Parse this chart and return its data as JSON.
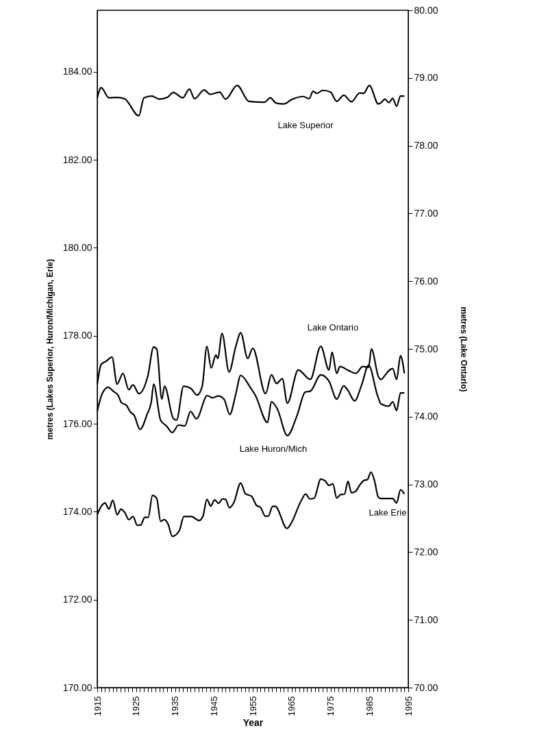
{
  "chart_data": {
    "type": "line",
    "xlabel": "Year",
    "ylabel": "metres (Lakes Superior, Huron/Michigan, Erie)",
    "y2label": "metres (Lake Ontario)",
    "xlim": [
      1915,
      1995
    ],
    "xticks": [
      1915,
      {
        "value": 1916,
        "label": null
      },
      {
        "value": 1917,
        "label": null
      },
      {
        "value": 1918,
        "label": null
      },
      {
        "value": 1919,
        "label": null
      },
      {
        "value": 1920,
        "label": null
      },
      {
        "value": 1921,
        "label": null
      },
      {
        "value": 1922,
        "label": null
      },
      {
        "value": 1923,
        "label": null
      },
      {
        "value": 1924,
        "label": null
      },
      1925,
      {
        "value": 1926,
        "label": null
      },
      {
        "value": 1927,
        "label": null
      },
      {
        "value": 1928,
        "label": null
      },
      {
        "value": 1929,
        "label": null
      },
      {
        "value": 1930,
        "label": null
      },
      {
        "value": 1931,
        "label": null
      },
      {
        "value": 1932,
        "label": null
      },
      {
        "value": 1933,
        "label": null
      },
      {
        "value": 1934,
        "label": null
      },
      1935,
      {
        "value": 1936,
        "label": null
      },
      {
        "value": 1937,
        "label": null
      },
      {
        "value": 1938,
        "label": null
      },
      {
        "value": 1939,
        "label": null
      },
      {
        "value": 1940,
        "label": null
      },
      {
        "value": 1941,
        "label": null
      },
      {
        "value": 1942,
        "label": null
      },
      {
        "value": 1943,
        "label": null
      },
      {
        "value": 1944,
        "label": null
      },
      1945,
      {
        "value": 1946,
        "label": null
      },
      {
        "value": 1947,
        "label": null
      },
      {
        "value": 1948,
        "label": null
      },
      {
        "value": 1949,
        "label": null
      },
      {
        "value": 1950,
        "label": null
      },
      {
        "value": 1951,
        "label": null
      },
      {
        "value": 1952,
        "label": null
      },
      {
        "value": 1953,
        "label": null
      },
      {
        "value": 1954,
        "label": null
      },
      1955,
      {
        "value": 1956,
        "label": null
      },
      {
        "value": 1957,
        "label": null
      },
      {
        "value": 1958,
        "label": null
      },
      {
        "value": 1959,
        "label": null
      },
      {
        "value": 1960,
        "label": null
      },
      {
        "value": 1961,
        "label": null
      },
      {
        "value": 1962,
        "label": null
      },
      {
        "value": 1963,
        "label": null
      },
      {
        "value": 1964,
        "label": null
      },
      1965,
      {
        "value": 1966,
        "label": null
      },
      {
        "value": 1967,
        "label": null
      },
      {
        "value": 1968,
        "label": null
      },
      {
        "value": 1969,
        "label": null
      },
      {
        "value": 1970,
        "label": null
      },
      {
        "value": 1971,
        "label": null
      },
      {
        "value": 1972,
        "label": null
      },
      {
        "value": 1973,
        "label": null
      },
      {
        "value": 1974,
        "label": null
      },
      1975,
      {
        "value": 1976,
        "label": null
      },
      {
        "value": 1977,
        "label": null
      },
      {
        "value": 1978,
        "label": null
      },
      {
        "value": 1979,
        "label": null
      },
      {
        "value": 1980,
        "label": null
      },
      {
        "value": 1981,
        "label": null
      },
      {
        "value": 1982,
        "label": null
      },
      {
        "value": 1983,
        "label": null
      },
      {
        "value": 1984,
        "label": null
      },
      1985,
      {
        "value": 1986,
        "label": null
      },
      {
        "value": 1987,
        "label": null
      },
      {
        "value": 1988,
        "label": null
      },
      {
        "value": 1989,
        "label": null
      },
      {
        "value": 1990,
        "label": null
      },
      {
        "value": 1991,
        "label": null
      },
      {
        "value": 1992,
        "label": null
      },
      {
        "value": 1993,
        "label": null
      },
      {
        "value": 1994,
        "label": null
      },
      1995
    ],
    "ylim": [
      170,
      185.4
    ],
    "yticks": [
      {
        "value": 170,
        "label": "170.00"
      },
      {
        "value": 172,
        "label": "172.00"
      },
      {
        "value": 174,
        "label": "174.00"
      },
      {
        "value": 176,
        "label": "176.00"
      },
      {
        "value": 178,
        "label": "178.00"
      },
      {
        "value": 180,
        "label": "180.00"
      },
      {
        "value": 182,
        "label": "182.00"
      },
      {
        "value": 184,
        "label": "184.00"
      }
    ],
    "y2lim": [
      70,
      80
    ],
    "y2ticks": [
      {
        "value": 70,
        "label": "70.00"
      },
      {
        "value": 71,
        "label": "71.00"
      },
      {
        "value": 72,
        "label": "72.00"
      },
      {
        "value": 73,
        "label": "73.00"
      },
      {
        "value": 74,
        "label": "74.00"
      },
      {
        "value": 75,
        "label": "75.00"
      },
      {
        "value": 76,
        "label": "76.00"
      },
      {
        "value": 77,
        "label": "77.00"
      },
      {
        "value": 78,
        "label": "78.00"
      },
      {
        "value": 79,
        "label": "79.00"
      },
      {
        "value": 80,
        "label": "80.00"
      }
    ],
    "marker": "none",
    "line_style": "solid",
    "series": [
      {
        "name": "Lake Superior",
        "color": "#000000",
        "x": [
          1915,
          1916,
          1918,
          1920,
          1922,
          1925.7,
          1927,
          1929,
          1931,
          1933,
          1934.6,
          1937,
          1938.7,
          1940,
          1942.5,
          1944,
          1946.5,
          1948,
          1951,
          1954,
          1958,
          1959.5,
          1961,
          1963,
          1965,
          1968,
          1969.5,
          1970.5,
          1971.5,
          1973,
          1975,
          1976.6,
          1978.4,
          1980.4,
          1982.5,
          1983.5,
          1985,
          1987.3,
          1988,
          1989,
          1990,
          1991,
          1992,
          1993,
          1994
        ],
        "values": [
          183.41,
          183.64,
          183.41,
          183.42,
          183.39,
          183.0,
          183.41,
          183.45,
          183.38,
          183.42,
          183.53,
          183.41,
          183.61,
          183.39,
          183.59,
          183.49,
          183.54,
          183.38,
          183.69,
          183.33,
          183.31,
          183.41,
          183.29,
          183.27,
          183.37,
          183.44,
          183.39,
          183.56,
          183.51,
          183.58,
          183.54,
          183.33,
          183.47,
          183.32,
          183.52,
          183.51,
          183.69,
          183.27,
          183.3,
          183.38,
          183.3,
          183.4,
          183.22,
          183.45,
          183.45
        ]
      },
      {
        "name": "Lake Ontario",
        "color": "#000000",
        "axis": "y2",
        "x": [
          1915,
          1916,
          1917.3,
          1918.8,
          1920.1,
          1921.6,
          1923.1,
          1924.2,
          1925.7,
          1928,
          1929.5,
          1930.3,
          1931.6,
          1932.3,
          1934.6,
          1935.4,
          1937.2,
          1939,
          1940.7,
          1942,
          1943.2,
          1944.3,
          1945.5,
          1946,
          1947.1,
          1948.9,
          1950.6,
          1951.9,
          1953.7,
          1955,
          1958.3,
          1959.8,
          1961.1,
          1962.6,
          1963.9,
          1966.7,
          1969.8,
          1972.5,
          1974.6,
          1975.4,
          1976.6,
          1977.4,
          1979.7,
          1981.5,
          1983.3,
          1984.8,
          1985.5,
          1987.4,
          1988,
          1989,
          1990,
          1991,
          1992,
          1993,
          1994
        ],
        "values": [
          74.48,
          74.77,
          74.82,
          74.88,
          74.48,
          74.64,
          74.4,
          74.47,
          74.34,
          74.6,
          75.03,
          75.0,
          74.26,
          74.45,
          73.97,
          73.95,
          74.45,
          74.42,
          74.32,
          74.45,
          75.04,
          74.72,
          74.91,
          74.86,
          75.23,
          74.66,
          75.03,
          75.24,
          74.86,
          75.01,
          74.34,
          74.62,
          74.49,
          74.56,
          74.2,
          74.69,
          74.55,
          75.04,
          74.69,
          74.95,
          74.64,
          74.74,
          74.68,
          74.64,
          74.74,
          74.73,
          75.0,
          74.58,
          74.55,
          74.61,
          74.68,
          74.71,
          74.55,
          74.9,
          74.64
        ]
      },
      {
        "name": "Lake Huron/Mich",
        "color": "#000000",
        "x": [
          1915,
          1916.3,
          1917.8,
          1919.1,
          1920.4,
          1921.2,
          1922.5,
          1923.5,
          1924.5,
          1926,
          1927.8,
          1928.9,
          1929.5,
          1931.3,
          1932.8,
          1934.3,
          1935.9,
          1937.5,
          1939,
          1940.5,
          1943.3,
          1944.6,
          1946.1,
          1947.6,
          1949.1,
          1950.6,
          1951.9,
          1954.2,
          1955.7,
          1958.8,
          1959.8,
          1961.3,
          1963.9,
          1966.4,
          1968.5,
          1969.8,
          1972.5,
          1974.6,
          1976.6,
          1978.4,
          1979.4,
          1981.2,
          1983,
          1984.8,
          1987.1,
          1988,
          1990,
          1991,
          1992,
          1993,
          1994
        ],
        "values": [
          176.29,
          176.69,
          176.83,
          176.74,
          176.64,
          176.48,
          176.42,
          176.27,
          176.19,
          175.87,
          176.21,
          176.5,
          176.9,
          176.08,
          175.95,
          175.8,
          175.97,
          175.95,
          176.28,
          176.11,
          176.64,
          176.59,
          176.63,
          176.56,
          176.21,
          176.66,
          177.1,
          176.85,
          176.64,
          176.03,
          176.5,
          176.34,
          175.73,
          176.19,
          176.72,
          176.74,
          177.11,
          176.97,
          176.56,
          176.86,
          176.77,
          176.52,
          176.88,
          177.33,
          176.64,
          176.45,
          176.4,
          176.5,
          176.3,
          176.7,
          176.7
        ]
      },
      {
        "name": "Lake Erie",
        "color": "#000000",
        "x": [
          1915,
          1916,
          1917,
          1918,
          1919,
          1920.1,
          1921.1,
          1922.1,
          1923.1,
          1924.2,
          1925.3,
          1926.2,
          1927.2,
          1928.1,
          1929.2,
          1930.3,
          1931.3,
          1932.2,
          1933.2,
          1934.3,
          1936.1,
          1937.3,
          1939.2,
          1941.2,
          1942.2,
          1943.2,
          1944.2,
          1945.2,
          1946.2,
          1947.2,
          1948,
          1949,
          1950.1,
          1951.9,
          1953.1,
          1954.7,
          1956,
          1957,
          1958.2,
          1959,
          1960.1,
          1960.8,
          1963.8,
          1964.9,
          1967.5,
          1968.6,
          1969.7,
          1970.8,
          1972.5,
          1973.6,
          1974.6,
          1975.6,
          1976.6,
          1977.6,
          1978.6,
          1979.5,
          1980.4,
          1981.4,
          1982.7,
          1983.6,
          1984.5,
          1985.4,
          1986.3,
          1987.3,
          1988,
          1990,
          1991,
          1992,
          1993,
          1994
        ],
        "values": [
          173.93,
          174.12,
          174.2,
          174.06,
          174.26,
          173.93,
          174.06,
          173.98,
          173.82,
          173.89,
          173.69,
          173.7,
          173.87,
          173.87,
          174.37,
          174.3,
          173.78,
          173.82,
          173.72,
          173.44,
          173.57,
          173.89,
          173.89,
          173.8,
          173.9,
          174.28,
          174.13,
          174.27,
          174.19,
          174.29,
          174.28,
          174.09,
          174.2,
          174.65,
          174.41,
          174.35,
          174.14,
          174.1,
          173.9,
          173.9,
          174.12,
          174.12,
          173.62,
          173.74,
          174.26,
          174.4,
          174.29,
          174.31,
          174.74,
          174.7,
          174.6,
          174.63,
          174.31,
          174.39,
          174.4,
          174.69,
          174.43,
          174.46,
          174.63,
          174.71,
          174.73,
          174.9,
          174.71,
          174.33,
          174.3,
          174.3,
          174.3,
          174.2,
          174.5,
          174.4
        ]
      }
    ]
  }
}
